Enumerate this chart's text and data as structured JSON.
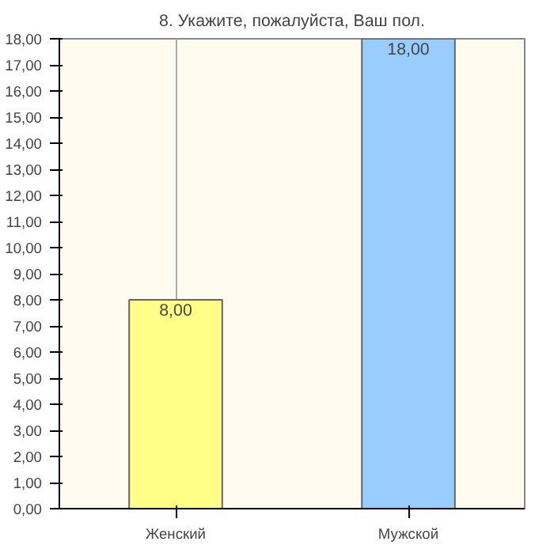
{
  "chart_data": {
    "type": "bar",
    "title": "8. Укажите, пожалуйста, Ваш пол.",
    "categories": [
      "Женский",
      "Мужской"
    ],
    "values": [
      8,
      18
    ],
    "colors": [
      "#ffff88",
      "#99ccff"
    ],
    "value_labels": [
      "8,00",
      "18,00"
    ],
    "ylim": [
      0,
      18
    ],
    "yticks": [
      {
        "value": 0,
        "label": "0,00"
      },
      {
        "value": 1,
        "label": "1,00"
      },
      {
        "value": 2,
        "label": "2,00"
      },
      {
        "value": 3,
        "label": "3,00"
      },
      {
        "value": 4,
        "label": "4,00"
      },
      {
        "value": 5,
        "label": "5,00"
      },
      {
        "value": 6,
        "label": "6,00"
      },
      {
        "value": 7,
        "label": "7,00"
      },
      {
        "value": 8,
        "label": "8,00"
      },
      {
        "value": 9,
        "label": "9,00"
      },
      {
        "value": 10,
        "label": "10,00"
      },
      {
        "value": 11,
        "label": "11,00"
      },
      {
        "value": 12,
        "label": "12,00"
      },
      {
        "value": 13,
        "label": "13,00"
      },
      {
        "value": 14,
        "label": "14,00"
      },
      {
        "value": 15,
        "label": "15,00"
      },
      {
        "value": 16,
        "label": "16,00"
      },
      {
        "value": 17,
        "label": "17,00"
      },
      {
        "value": 18,
        "label": "18,00"
      }
    ],
    "grid": "x"
  }
}
